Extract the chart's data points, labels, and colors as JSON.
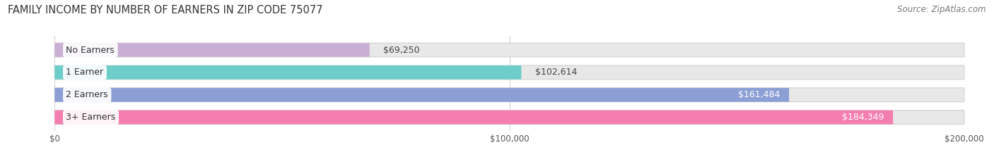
{
  "title": "FAMILY INCOME BY NUMBER OF EARNERS IN ZIP CODE 75077",
  "source": "Source: ZipAtlas.com",
  "categories": [
    "No Earners",
    "1 Earner",
    "2 Earners",
    "3+ Earners"
  ],
  "values": [
    69250,
    102614,
    161484,
    184349
  ],
  "labels": [
    "$69,250",
    "$102,614",
    "$161,484",
    "$184,349"
  ],
  "label_inside": [
    false,
    false,
    true,
    true
  ],
  "bar_colors": [
    "#c9afd4",
    "#6dcdc8",
    "#8b9fd4",
    "#f47eb0"
  ],
  "bar_bg_color": "#e8e8e8",
  "row_bg_color": "#f2f2f2",
  "xlim": [
    0,
    200000
  ],
  "xtick_values": [
    0,
    100000,
    200000
  ],
  "xtick_labels": [
    "$0",
    "$100,000",
    "$200,000"
  ],
  "title_fontsize": 10.5,
  "source_fontsize": 8.5,
  "label_fontsize": 9,
  "category_fontsize": 9,
  "bar_height": 0.62,
  "fig_bg_color": "#ffffff"
}
